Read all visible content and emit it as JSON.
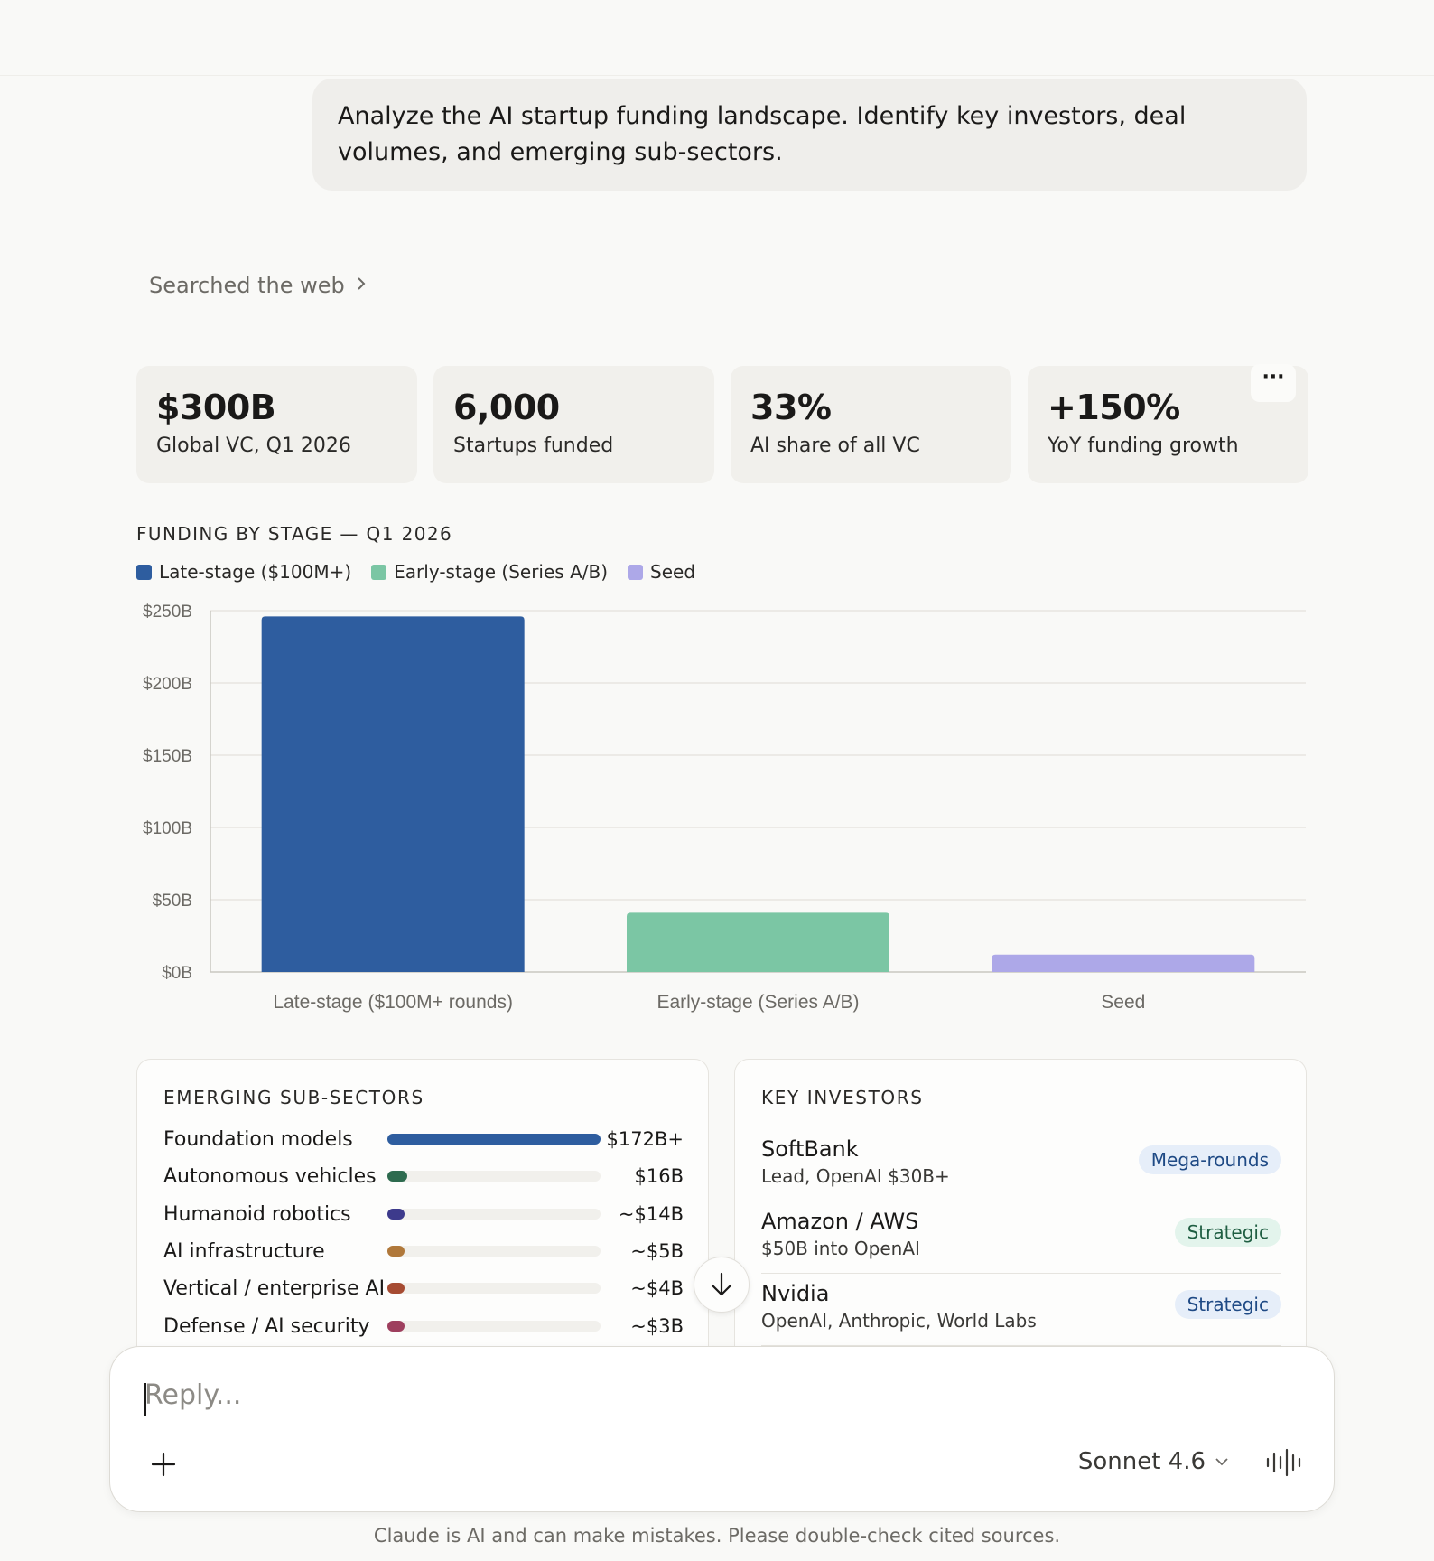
{
  "user_message": "Analyze the AI startup funding landscape. Identify key investors, deal volumes, and emerging sub-sectors.",
  "searched_label": "Searched the web",
  "stats": [
    {
      "value": "$300B",
      "label": "Global VC, Q1 2026"
    },
    {
      "value": "6,000",
      "label": "Startups funded"
    },
    {
      "value": "33%",
      "label": "AI share of all VC"
    },
    {
      "value": "+150%",
      "label": "YoY funding growth"
    }
  ],
  "more_label": "···",
  "chart": {
    "title": "FUNDING BY STAGE — Q1 2026",
    "legend": [
      {
        "label": "Late-stage ($100M+)",
        "color": "#2e5d9f"
      },
      {
        "label": "Early-stage (Series A/B)",
        "color": "#7bc6a4"
      },
      {
        "label": "Seed",
        "color": "#ada8e8"
      }
    ]
  },
  "chart_data": {
    "type": "bar",
    "title": "FUNDING BY STAGE — Q1 2026",
    "categories": [
      "Late-stage ($100M+ rounds)",
      "Early-stage (Series A/B)",
      "Seed"
    ],
    "values": [
      246,
      41,
      12
    ],
    "colors": [
      "#2e5d9f",
      "#7bc6a4",
      "#ada8e8"
    ],
    "yticks": [
      "$0B",
      "$50B",
      "$100B",
      "$150B",
      "$200B",
      "$250B"
    ],
    "ylim": [
      0,
      250
    ],
    "grid": true,
    "legend_placement": "top-left"
  },
  "sectors": {
    "title": "EMERGING SUB-SECTORS",
    "items": [
      {
        "name": "Foundation models",
        "amount": "$172B+",
        "fraction": 1.0,
        "color": "#2e5d9f"
      },
      {
        "name": "Autonomous vehicles",
        "amount": "$16B",
        "fraction": 0.093,
        "color": "#2e6b4f"
      },
      {
        "name": "Humanoid robotics",
        "amount": "~$14B",
        "fraction": 0.081,
        "color": "#3d3a8c"
      },
      {
        "name": "AI infrastructure",
        "amount": "~$5B",
        "fraction": 0.05,
        "color": "#b0783a"
      },
      {
        "name": "Vertical / enterprise AI",
        "amount": "~$4B",
        "fraction": 0.045,
        "color": "#a64b32"
      },
      {
        "name": "Defense / AI security",
        "amount": "~$3B",
        "fraction": 0.04,
        "color": "#9e3f5e"
      }
    ]
  },
  "investors": {
    "title": "KEY INVESTORS",
    "items": [
      {
        "name": "SoftBank",
        "detail": "Lead, OpenAI $30B+",
        "tag": "Mega-rounds",
        "tag_bg": "#e6eef9",
        "tag_fg": "#1f4a85"
      },
      {
        "name": "Amazon / AWS",
        "detail": "$50B into OpenAI",
        "tag": "Strategic",
        "tag_bg": "#e3f4ec",
        "tag_fg": "#1f5e42"
      },
      {
        "name": "Nvidia",
        "detail": "OpenAI, Anthropic, World Labs",
        "tag": "Strategic",
        "tag_bg": "#e6eef9",
        "tag_fg": "#1f4a85"
      }
    ]
  },
  "reply": {
    "placeholder": "Reply...",
    "model": "Sonnet 4.6"
  },
  "disclaimer": "Claude is AI and can make mistakes. Please double-check cited sources."
}
